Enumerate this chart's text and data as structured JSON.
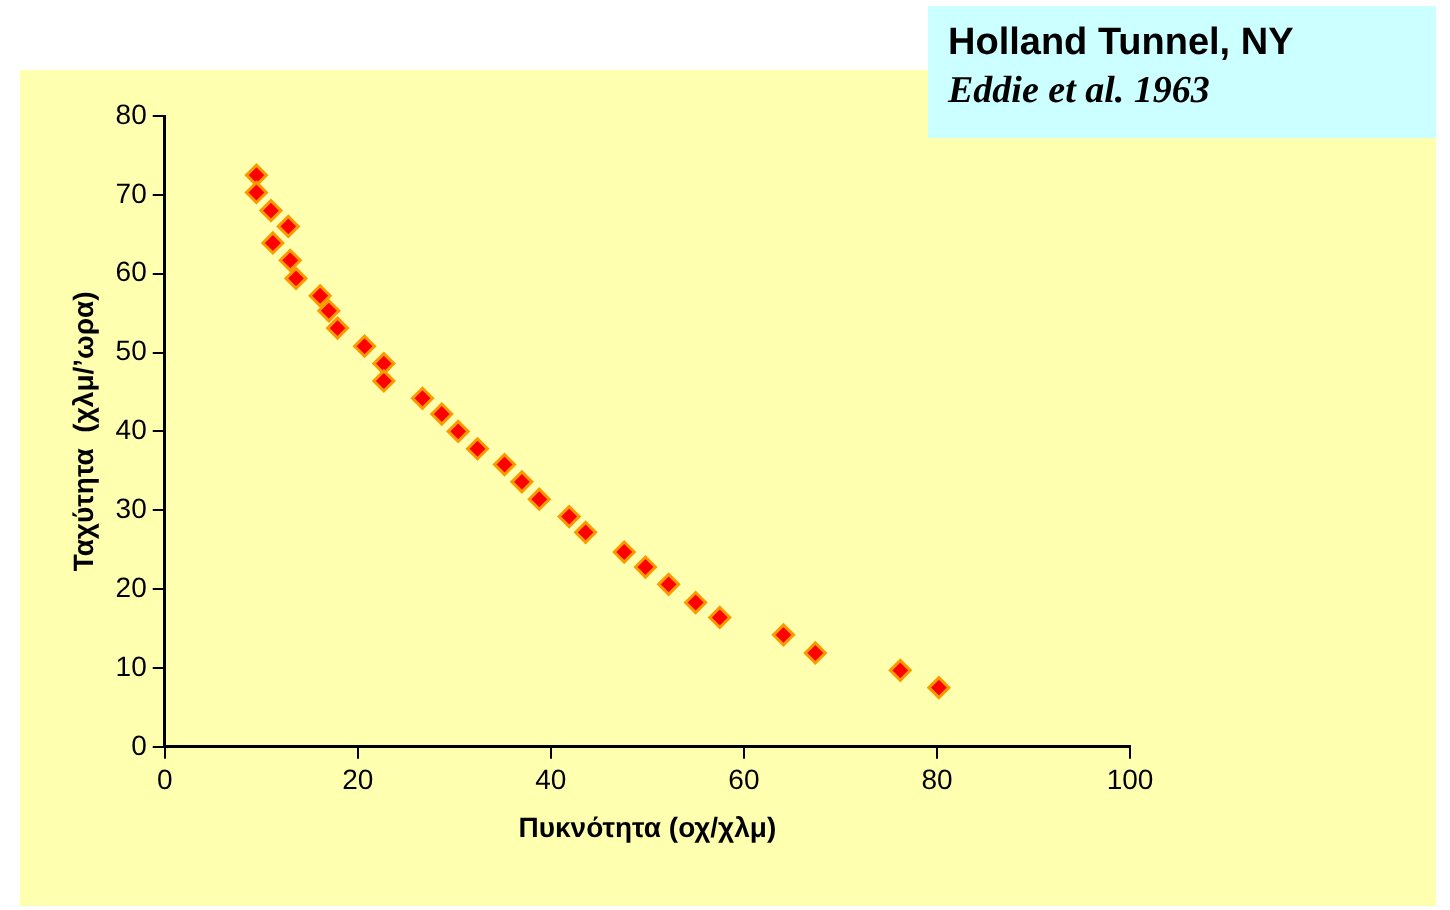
{
  "chart_data": {
    "type": "scatter",
    "title": "Holland Tunnel, NY",
    "subtitle": "Eddie et al. 1963",
    "xlabel": "Πυκνότητα (οχ/χλμ)",
    "ylabel": "Ταχύτητα  (χλμ/’ωρα)",
    "x": [
      9.5,
      9.5,
      11,
      12.8,
      11.2,
      13,
      13.6,
      16.1,
      17,
      17.9,
      20.7,
      22.7,
      22.7,
      26.7,
      28.7,
      30.4,
      32.4,
      35.2,
      37,
      38.8,
      41.9,
      43.6,
      47.6,
      49.8,
      52.2,
      55,
      57.5,
      64.1,
      67.4,
      76.2,
      80.2
    ],
    "values": [
      72.5,
      70.3,
      68,
      66,
      63.9,
      61.7,
      59.4,
      57.2,
      55.3,
      53.1,
      50.8,
      48.6,
      46.4,
      44.2,
      42.2,
      40,
      37.8,
      35.8,
      33.6,
      31.4,
      29.2,
      27.2,
      24.7,
      22.8,
      20.6,
      18.3,
      16.4,
      14.2,
      11.9,
      9.7,
      7.5
    ],
    "color": "#ff0000",
    "marker": "diamond",
    "xlim": [
      0,
      100
    ],
    "xticks": [
      0,
      20,
      40,
      60,
      80,
      100
    ],
    "ylim": [
      0,
      80
    ],
    "yticks": [
      0,
      10,
      20,
      30,
      40,
      50,
      60,
      70,
      80
    ],
    "grid": false,
    "legend": false
  }
}
